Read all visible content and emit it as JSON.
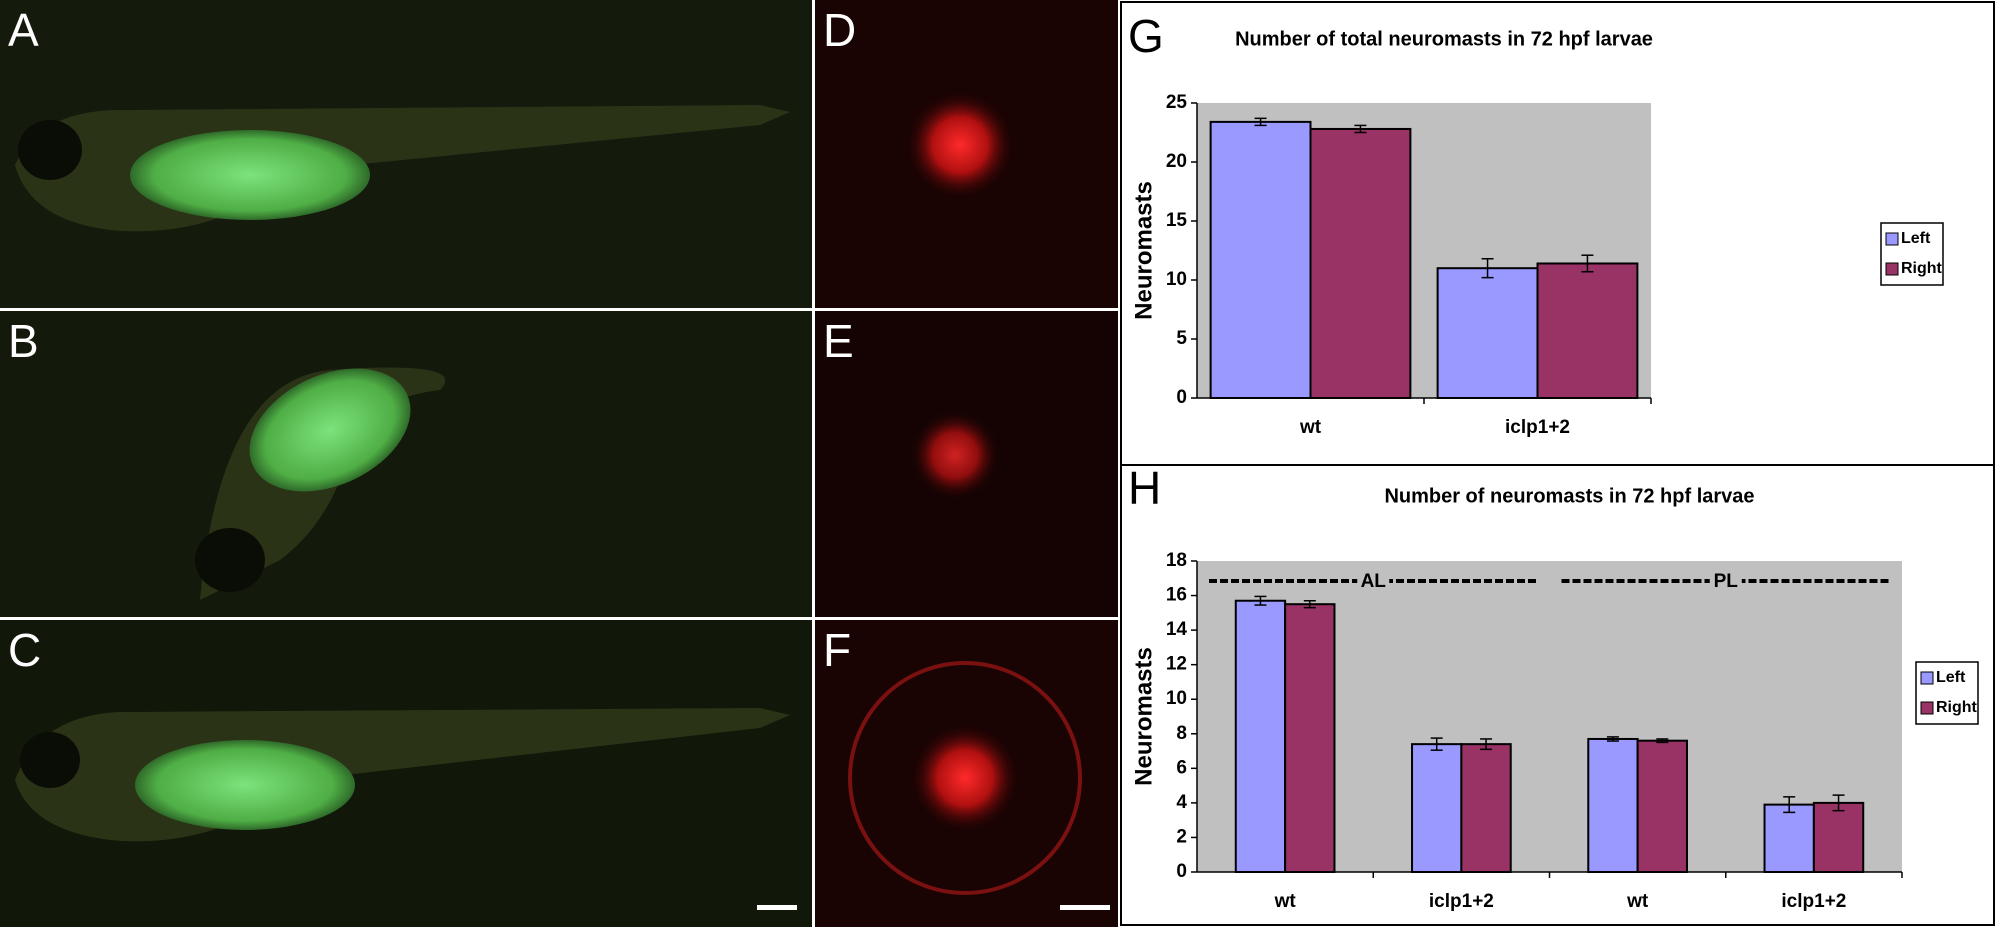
{
  "panels": [
    "A",
    "B",
    "C",
    "D",
    "E",
    "F"
  ],
  "chart_data": [
    {
      "type": "bar",
      "panel": "G",
      "title": "Number of total neuromasts in 72 hpf larvae",
      "y_label": "Neuromasts",
      "categories": [
        "wt",
        "iclp1+2"
      ],
      "series": [
        {
          "name": "Left",
          "color": "#9999ff",
          "values": [
            23.4,
            11.0
          ],
          "errors": [
            0.3,
            0.8
          ]
        },
        {
          "name": "Right",
          "color": "#993366",
          "values": [
            22.8,
            11.4
          ],
          "errors": [
            0.3,
            0.7
          ]
        }
      ],
      "ylim": [
        0,
        25
      ],
      "yticks": [
        0,
        5,
        10,
        15,
        20,
        25
      ],
      "legend": "right"
    },
    {
      "type": "bar",
      "panel": "H",
      "title": "Number of neuromasts in 72 hpf larvae",
      "y_label": "Neuromasts",
      "categories": [
        "wt",
        "iclp1+2",
        "wt",
        "iclp1+2"
      ],
      "series": [
        {
          "name": "Left",
          "color": "#9999ff",
          "values": [
            15.7,
            7.4,
            7.7,
            3.9
          ],
          "errors": [
            0.25,
            0.35,
            0.12,
            0.45
          ]
        },
        {
          "name": "Right",
          "color": "#993366",
          "values": [
            15.5,
            7.4,
            7.6,
            4.0
          ],
          "errors": [
            0.2,
            0.3,
            0.1,
            0.45
          ]
        }
      ],
      "annotations": [
        "AL",
        "PL"
      ],
      "ylim": [
        0,
        18
      ],
      "yticks": [
        0,
        2,
        4,
        6,
        8,
        10,
        12,
        14,
        16,
        18
      ],
      "legend": "right"
    }
  ]
}
